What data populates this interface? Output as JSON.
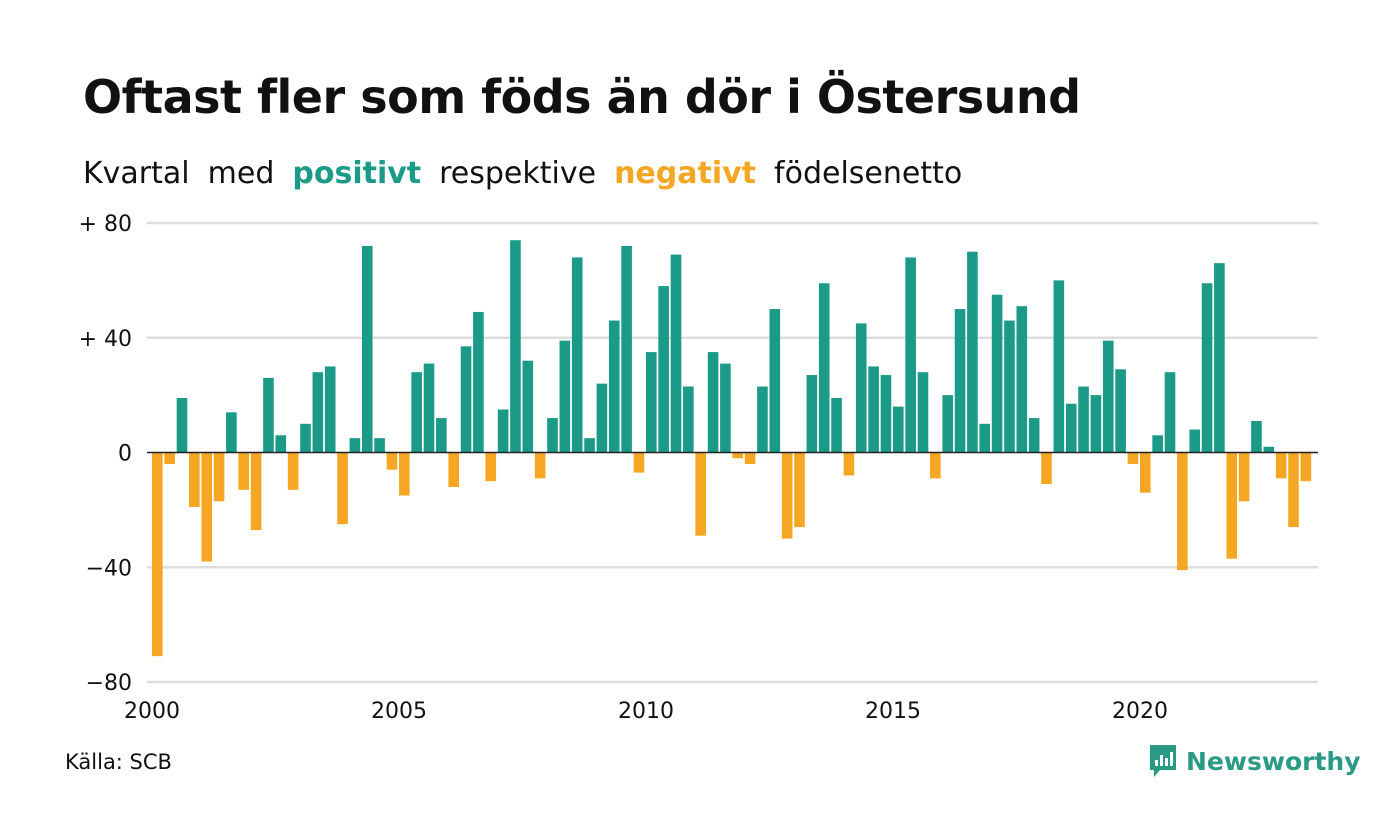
{
  "header": {
    "title": "Oftast fler som föds än dör i Östersund",
    "subtitle": {
      "w1": "Kvartal",
      "w2": "med",
      "positive": "positivt",
      "w3": "respektive",
      "negative": "negativt",
      "w4": "födelsenetto"
    }
  },
  "footer": {
    "source": "Källa: SCB",
    "brand": "Newsworthy"
  },
  "colors": {
    "positive": "#1a9a87",
    "negative": "#f5a623",
    "brand": "#2a9a84"
  },
  "chart_data": {
    "type": "bar",
    "title": "Oftast fler som föds än dör i Östersund",
    "subtitle": "Kvartal med positivt respektive negativt födelsenetto",
    "start": "2000 Q1",
    "ylim": [
      -80,
      80
    ],
    "y_ticks": [
      80,
      40,
      0,
      -40,
      -80
    ],
    "y_tick_labels": [
      "+ 80",
      "+ 40",
      "0",
      "−40",
      "−80"
    ],
    "x_ticks": [
      "2000",
      "2005",
      "2010",
      "2015",
      "2020"
    ],
    "grid": true,
    "values": [
      -71,
      -4,
      19,
      -19,
      -38,
      -17,
      14,
      -13,
      -27,
      26,
      6,
      -13,
      10,
      28,
      30,
      -25,
      5,
      72,
      5,
      -6,
      -15,
      28,
      31,
      12,
      -12,
      37,
      49,
      -10,
      15,
      74,
      32,
      -9,
      12,
      39,
      68,
      5,
      24,
      46,
      72,
      -7,
      35,
      58,
      69,
      23,
      -29,
      35,
      31,
      -2,
      -4,
      23,
      50,
      -30,
      -26,
      27,
      59,
      19,
      -8,
      45,
      30,
      27,
      16,
      68,
      28,
      -9,
      20,
      50,
      70,
      10,
      55,
      46,
      51,
      12,
      -11,
      60,
      17,
      23,
      20,
      39,
      29,
      -4,
      -14,
      6,
      28,
      -41,
      8,
      59,
      66,
      -37,
      -17,
      11,
      2,
      -9,
      -26,
      -10
    ]
  }
}
